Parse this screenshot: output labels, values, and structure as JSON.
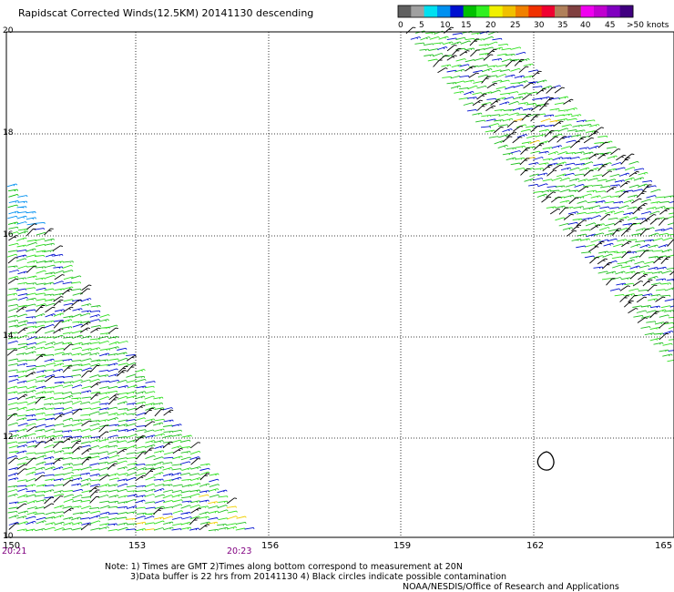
{
  "title": "Rapidscat Corrected Winds(12.5KM) 20141130 descending",
  "legend": {
    "labels": [
      "0",
      "5",
      "10",
      "15",
      "20",
      "25",
      "30",
      "35",
      "40",
      "45",
      ">50 knots"
    ],
    "colors": [
      "#606060",
      "#a0a0a0",
      "#00e0f0",
      "#0090f0",
      "#0010d0",
      "#00c000",
      "#30f020",
      "#f0f000",
      "#f0c000",
      "#f08000",
      "#f03000",
      "#f00030",
      "#b0805a",
      "#804040",
      "#f000f0",
      "#c000d0",
      "#8000c0",
      "#400080"
    ]
  },
  "map": {
    "lat_labels": [
      "20",
      "18",
      "16",
      "14",
      "12",
      "10"
    ],
    "lon_labels": [
      "150",
      "153",
      "156",
      "159",
      "162",
      "165"
    ],
    "time_labels": [
      "20:21",
      "20:23"
    ],
    "time_color": "#800080",
    "grid": true
  },
  "notes": {
    "line1": "Note: 1) Times are GMT 2)Times along bottom correspond to measurement at 20N",
    "line2": "3)Data buffer is 22 hrs from 20141130 4) Black circles indicate possible contamination",
    "line3": "NOAA/NESDIS/Office of Research and Applications"
  }
}
